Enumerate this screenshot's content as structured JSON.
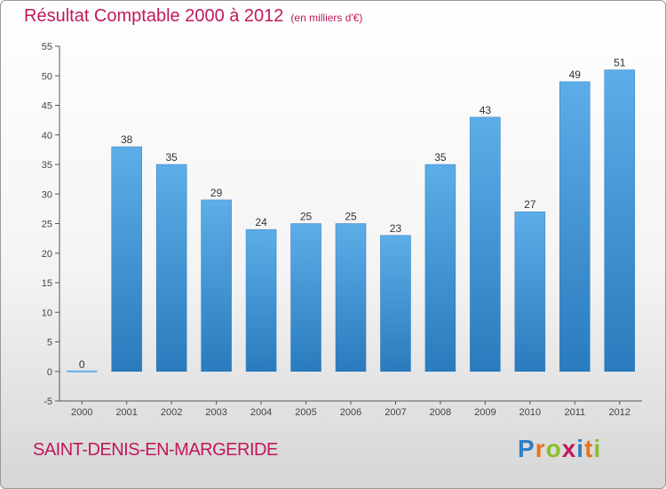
{
  "title": "Résultat Comptable 2000 à 2012",
  "unit": "(en milliers d'€)",
  "commune": "SAINT-DENIS-EN-MARGERIDE",
  "logo": {
    "letters": [
      "P",
      "r",
      "o",
      "x",
      "i",
      "t",
      "i"
    ],
    "colors": [
      "#2e7fc1",
      "#e8731a",
      "#8bbd2a",
      "#c2185b",
      "#2e7fc1",
      "#e8731a",
      "#8bbd2a"
    ]
  },
  "chart_data": {
    "type": "bar",
    "categories": [
      "2000",
      "2001",
      "2002",
      "2003",
      "2004",
      "2005",
      "2006",
      "2007",
      "2008",
      "2009",
      "2010",
      "2011",
      "2012"
    ],
    "values": [
      0,
      38,
      35,
      29,
      24,
      25,
      25,
      23,
      35,
      43,
      27,
      49,
      51
    ],
    "yticks": [
      "-5",
      "0",
      "5",
      "10",
      "15",
      "20",
      "25",
      "30",
      "35",
      "40",
      "45",
      "50",
      "55"
    ],
    "ylim": [
      -5,
      55
    ],
    "grid": false,
    "bar_color": "#3d8fd6"
  }
}
